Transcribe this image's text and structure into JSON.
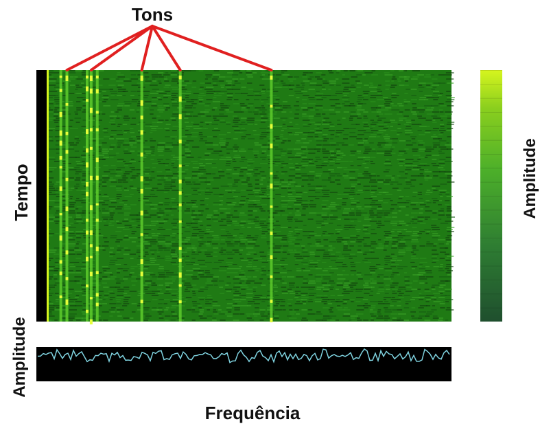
{
  "chart_data": {
    "type": "heatmap",
    "title": "Tons",
    "xlabel": "Frequência",
    "ylabel": "Tempo",
    "colorbar_label": "Amplitude",
    "lower_panel_ylabel": "Amplitude",
    "tones_x_fraction": [
      0.05,
      0.11,
      0.235,
      0.33,
      0.555
    ],
    "extra_tone_lines_x_fraction": [
      0.035,
      0.1,
      0.125
    ],
    "colorbar_colors": [
      "#1f4f2e",
      "#2e7d32",
      "#4caf2a",
      "#8bcf1e",
      "#d6f51e"
    ],
    "spectrogram_bg": "#1f7a14",
    "trace_color": "#7fd3e0"
  }
}
